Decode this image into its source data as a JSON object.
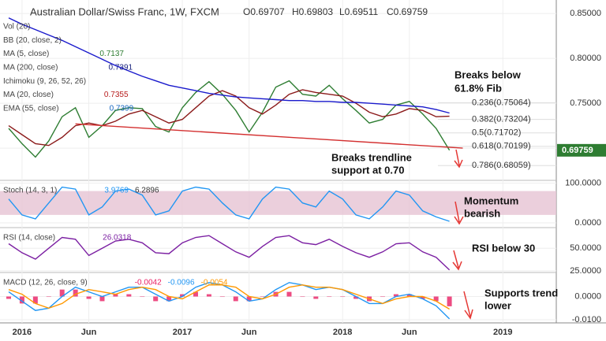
{
  "chart_data": {
    "type": "line",
    "title": "Australian Dollar/Swiss Franc, 1W, FXCM",
    "ohlc": [
      "O0.69707",
      "H0.69803",
      "L0.69511",
      "C0.69759"
    ],
    "indicators": [
      {
        "name": "Vol (20)"
      },
      {
        "name": "BB (20, close, 2)"
      },
      {
        "name": "MA (5, close)",
        "value": "0.7137",
        "color": "#2e7d32"
      },
      {
        "name": "MA (200, close)",
        "value": "0.7391",
        "color": "#1a237e"
      },
      {
        "name": "Ichimoku (9, 26, 52, 26)"
      },
      {
        "name": "MA (20, close)",
        "value": "0.7355",
        "color": "#b71c1c"
      },
      {
        "name": "EMA (55, close)",
        "value": "0.7399",
        "color": "#1565c0"
      }
    ],
    "annotations": [
      "Breaks below",
      "61.8% Fib",
      "Breaks trendline",
      "support at 0.70",
      "Momentum",
      "bearish",
      "RSI below 30",
      "Supports trend",
      "lower"
    ],
    "x": [
      -1,
      0,
      1,
      2,
      3,
      4,
      5,
      6,
      7,
      8,
      9,
      10,
      11,
      12,
      13,
      14,
      15,
      16,
      17,
      18,
      19,
      20,
      21,
      22,
      23,
      24,
      25,
      26,
      27,
      28,
      29,
      30,
      31,
      32
    ],
    "xlim": [
      -1.65,
      40
    ],
    "xticks": [
      {
        "value": 0,
        "label": "2016"
      },
      {
        "value": 5,
        "label": "Jun"
      },
      {
        "value": 12,
        "label": "2017"
      },
      {
        "value": 17,
        "label": "Jun"
      },
      {
        "value": 24,
        "label": "2018"
      },
      {
        "value": 29,
        "label": "Jun"
      },
      {
        "value": 36,
        "label": "2019"
      }
    ],
    "panels": [
      {
        "ylim": [
          0.665,
          0.865
        ],
        "yticks": [
          {
            "value": 0.7,
            "label": "0.70000"
          },
          {
            "value": 0.75,
            "label": "0.75000"
          },
          {
            "value": 0.8,
            "label": "0.80000"
          },
          {
            "value": 0.85,
            "label": "0.85000"
          }
        ],
        "last": {
          "value": 0.69759,
          "label": "0.69759"
        },
        "fib": [
          {
            "value": 0.75064,
            "label": "0.236(0.75064)"
          },
          {
            "value": 0.73204,
            "label": "0.382(0.73204)"
          },
          {
            "value": 0.71702,
            "label": "0.5(0.71702)"
          },
          {
            "value": 0.70199,
            "label": "0.618(0.70199)"
          },
          {
            "value": 0.68059,
            "label": "0.786(0.68059)"
          }
        ],
        "series": [
          {
            "name": "Close",
            "color": "#2e7d32",
            "values": [
              0.722,
              0.705,
              0.69,
              0.708,
              0.735,
              0.745,
              0.712,
              0.725,
              0.742,
              0.745,
              0.744,
              0.724,
              0.718,
              0.745,
              0.762,
              0.774,
              0.76,
              0.742,
              0.718,
              0.74,
              0.768,
              0.775,
              0.76,
              0.758,
              0.77,
              0.755,
              0.742,
              0.728,
              0.732,
              0.748,
              0.752,
              0.738,
              0.722,
              0.69759
            ]
          },
          {
            "name": "MA 20",
            "color": "#8b1a1a",
            "values": [
              0.725,
              0.715,
              0.705,
              0.703,
              0.712,
              0.725,
              0.728,
              0.725,
              0.73,
              0.738,
              0.742,
              0.735,
              0.728,
              0.732,
              0.745,
              0.758,
              0.764,
              0.758,
              0.745,
              0.738,
              0.748,
              0.76,
              0.765,
              0.762,
              0.76,
              0.758,
              0.75,
              0.74,
              0.735,
              0.738,
              0.744,
              0.742,
              0.735,
              0.7355
            ]
          },
          {
            "name": "MA 200",
            "color": "#1a1acc",
            "values": [
              0.845,
              0.838,
              0.832,
              0.826,
              0.82,
              0.813,
              0.806,
              0.799,
              0.792,
              0.786,
              0.78,
              0.775,
              0.77,
              0.767,
              0.764,
              0.761,
              0.759,
              0.757,
              0.756,
              0.755,
              0.754,
              0.753,
              0.753,
              0.752,
              0.752,
              0.751,
              0.751,
              0.75,
              0.749,
              0.748,
              0.747,
              0.746,
              0.743,
              0.7391
            ]
          },
          {
            "name": "Trendline",
            "color": "#d32f2f",
            "x": [
              4,
              33
            ],
            "values": [
              0.727,
              0.7
            ]
          }
        ]
      },
      {
        "label": "Stoch (14, 3, 1)",
        "readouts": [
          "3.9769",
          "6.2896"
        ],
        "ylim": [
          -10,
          105
        ],
        "band": [
          20,
          80
        ],
        "yticks": [
          {
            "value": 100,
            "label": "100.0000"
          },
          {
            "value": 0,
            "label": "0.0000"
          }
        ],
        "series": [
          {
            "name": "%K",
            "color": "#2196f3",
            "values": [
              60,
              20,
              10,
              50,
              90,
              85,
              20,
              40,
              80,
              85,
              70,
              20,
              30,
              80,
              90,
              85,
              50,
              20,
              10,
              60,
              90,
              85,
              50,
              40,
              80,
              60,
              20,
              10,
              40,
              80,
              70,
              30,
              15,
              3.9769
            ]
          }
        ]
      },
      {
        "label": "RSI (14, close)",
        "readouts": [
          "26.0318"
        ],
        "ylim": [
          24,
          72
        ],
        "yticks": [
          {
            "value": 50,
            "label": "50.0000"
          },
          {
            "value": 25,
            "label": "25.0000"
          }
        ],
        "series": [
          {
            "name": "RSI",
            "color": "#7b1fa2",
            "values": [
              55,
              45,
              38,
              50,
              62,
              60,
              42,
              50,
              58,
              60,
              56,
              45,
              44,
              56,
              62,
              64,
              55,
              46,
              40,
              52,
              62,
              64,
              56,
              54,
              60,
              52,
              45,
              40,
              46,
              55,
              56,
              46,
              40,
              26.0318
            ]
          }
        ]
      },
      {
        "label": "MACD (12, 26, close, 9)",
        "readouts": [
          "-0.0042",
          "-0.0096",
          "-0.0054"
        ],
        "ylim": [
          -0.011,
          0.01
        ],
        "yticks": [
          {
            "value": 0,
            "label": "0.0000"
          },
          {
            "value": -0.01,
            "label": "-0.0100"
          }
        ],
        "hist": {
          "color": "#e91e63",
          "values": [
            -0.001,
            -0.003,
            -0.003,
            0.0,
            0.003,
            0.003,
            -0.001,
            -0.002,
            0.001,
            0.001,
            0.0,
            -0.002,
            -0.002,
            0.001,
            0.002,
            0.001,
            0.0,
            -0.002,
            -0.002,
            0.0,
            0.002,
            0.002,
            0.0,
            -0.001,
            0.0,
            0.0,
            -0.001,
            -0.002,
            0.0,
            0.001,
            0.001,
            -0.001,
            -0.002,
            -0.0042
          ]
        },
        "series": [
          {
            "name": "MACD",
            "color": "#2196f3",
            "values": [
              0.002,
              -0.002,
              -0.006,
              -0.005,
              0.0,
              0.004,
              0.002,
              0.0,
              0.002,
              0.004,
              0.004,
              0.001,
              -0.002,
              0.0,
              0.004,
              0.006,
              0.005,
              0.002,
              -0.002,
              -0.001,
              0.003,
              0.006,
              0.005,
              0.003,
              0.004,
              0.003,
              0.0,
              -0.003,
              -0.003,
              0.0,
              0.001,
              -0.001,
              -0.004,
              -0.0096
            ]
          },
          {
            "name": "Signal",
            "color": "#ff9800",
            "values": [
              0.003,
              0.001,
              -0.003,
              -0.005,
              -0.003,
              0.001,
              0.003,
              0.002,
              0.001,
              0.003,
              0.004,
              0.003,
              0.0,
              -0.001,
              0.002,
              0.005,
              0.005,
              0.004,
              0.0,
              -0.001,
              0.001,
              0.004,
              0.005,
              0.004,
              0.004,
              0.003,
              0.001,
              -0.001,
              -0.003,
              -0.001,
              0.0,
              0.0,
              -0.002,
              -0.0054
            ]
          }
        ]
      }
    ]
  }
}
